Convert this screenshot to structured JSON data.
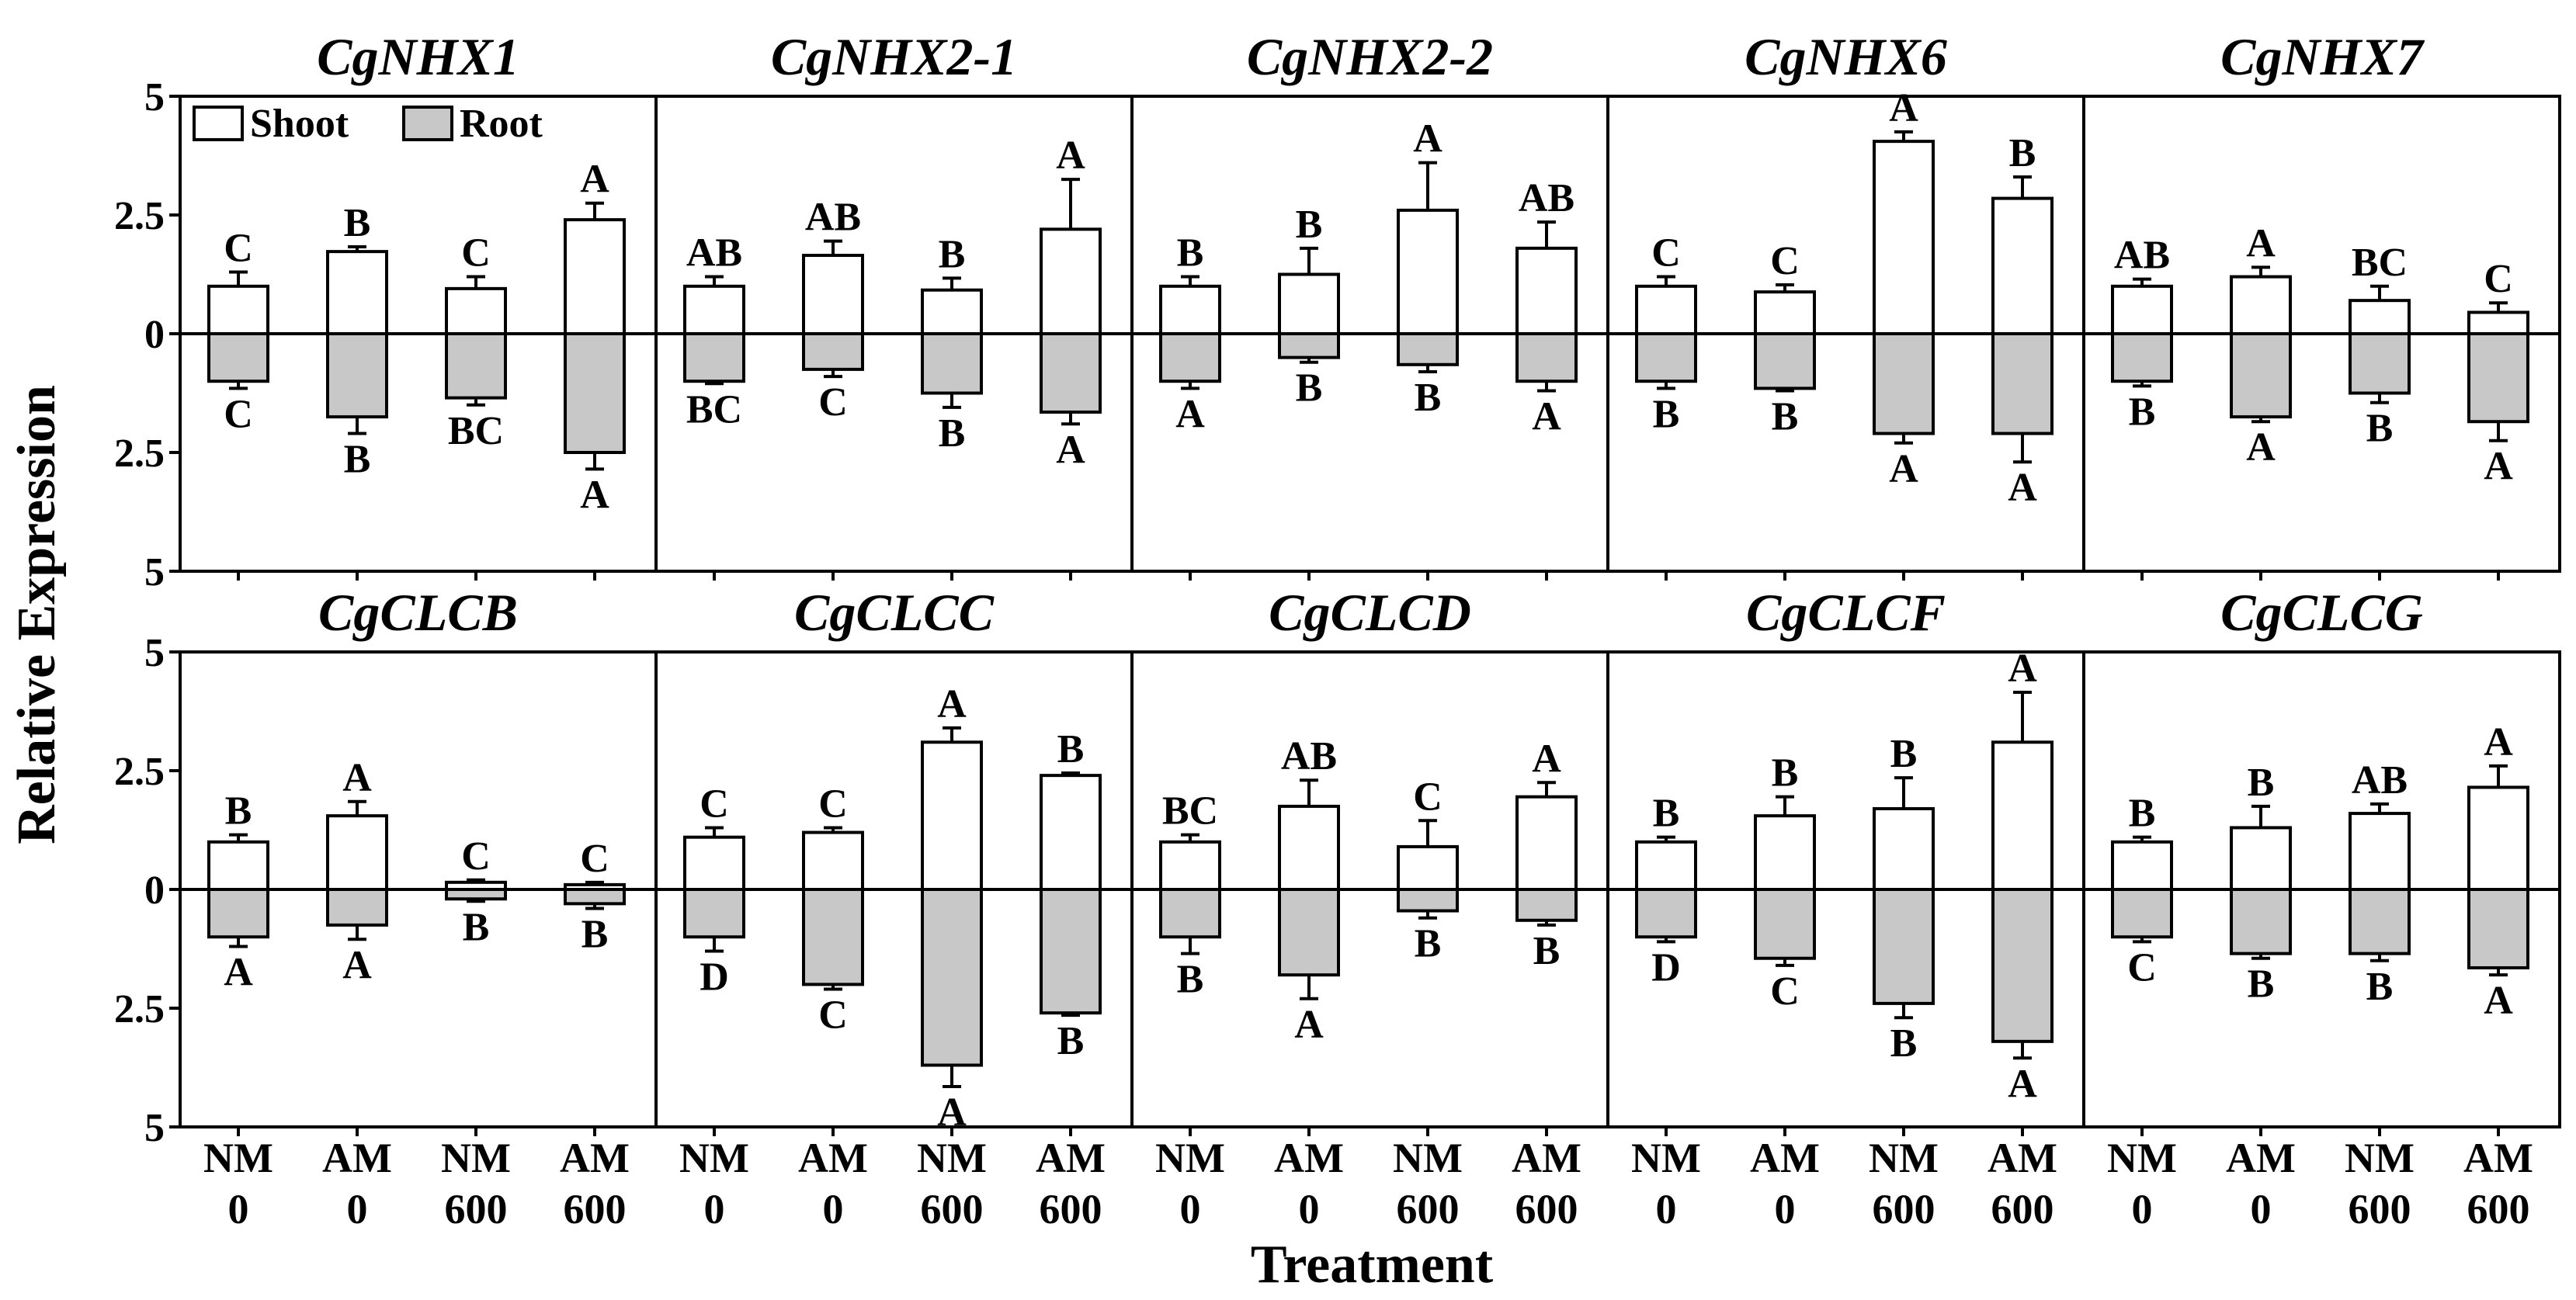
{
  "figure": {
    "ylabel": "Relative Expression",
    "xlabel": "Treatment"
  },
  "legend": {
    "shoot_label": "Shoot",
    "root_label": "Root",
    "shoot_color": "#ffffff",
    "root_color": "#c8c8c8"
  },
  "chart_data": {
    "type": "bar",
    "description_axis": "Two-sided bars: shoot upward, root downward (axis labels are absolute values)",
    "ylim": [
      -5,
      5
    ],
    "y_tick_values": [
      5,
      2.5,
      0,
      -2.5,
      -5
    ],
    "y_tick_labels": [
      "5",
      "2.5",
      "0",
      "2.5",
      "5"
    ],
    "categories": [
      {
        "line1": "NM",
        "line2": "0"
      },
      {
        "line1": "AM",
        "line2": "0"
      },
      {
        "line1": "NM",
        "line2": "600"
      },
      {
        "line1": "AM",
        "line2": "600"
      }
    ],
    "panels": [
      {
        "gene": "CgNHX1",
        "shoot": [
          1.0,
          1.73,
          0.95,
          2.4
        ],
        "shoot_err": [
          0.3,
          0.1,
          0.25,
          0.35
        ],
        "shoot_sig": [
          "C",
          "B",
          "C",
          "A"
        ],
        "root": [
          1.0,
          1.75,
          1.35,
          2.5
        ],
        "root_err": [
          0.15,
          0.35,
          0.15,
          0.35
        ],
        "root_sig": [
          "C",
          "B",
          "BC",
          "A"
        ]
      },
      {
        "gene": "CgNHX2-1",
        "shoot": [
          1.0,
          1.65,
          0.92,
          2.2
        ],
        "shoot_err": [
          0.2,
          0.3,
          0.25,
          1.05
        ],
        "shoot_sig": [
          "AB",
          "AB",
          "B",
          "A"
        ],
        "root": [
          1.0,
          0.75,
          1.25,
          1.65
        ],
        "root_err": [
          0.05,
          0.15,
          0.3,
          0.25
        ],
        "root_sig": [
          "BC",
          "C",
          "B",
          "A"
        ]
      },
      {
        "gene": "CgNHX2-2",
        "shoot": [
          1.0,
          1.25,
          2.6,
          1.8
        ],
        "shoot_err": [
          0.2,
          0.55,
          1.0,
          0.55
        ],
        "shoot_sig": [
          "B",
          "B",
          "A",
          "AB"
        ],
        "root": [
          1.0,
          0.5,
          0.65,
          1.0
        ],
        "root_err": [
          0.15,
          0.1,
          0.15,
          0.2
        ],
        "root_sig": [
          "A",
          "B",
          "B",
          "A"
        ]
      },
      {
        "gene": "CgNHX6",
        "shoot": [
          1.0,
          0.88,
          4.05,
          2.85
        ],
        "shoot_err": [
          0.2,
          0.15,
          0.2,
          0.45
        ],
        "shoot_sig": [
          "C",
          "C",
          "A",
          "B"
        ],
        "root": [
          1.0,
          1.15,
          2.1,
          2.1
        ],
        "root_err": [
          0.15,
          0.05,
          0.2,
          0.6
        ],
        "root_sig": [
          "B",
          "B",
          "A",
          "A"
        ]
      },
      {
        "gene": "CgNHX7",
        "shoot": [
          1.0,
          1.2,
          0.7,
          0.45
        ],
        "shoot_err": [
          0.15,
          0.2,
          0.3,
          0.2
        ],
        "shoot_sig": [
          "AB",
          "A",
          "BC",
          "C"
        ],
        "root": [
          1.0,
          1.75,
          1.25,
          1.85
        ],
        "root_err": [
          0.1,
          0.1,
          0.2,
          0.4
        ],
        "root_sig": [
          "B",
          "A",
          "B",
          "A"
        ]
      },
      {
        "gene": "CgCLCB",
        "shoot": [
          1.0,
          1.55,
          0.15,
          0.1
        ],
        "shoot_err": [
          0.15,
          0.3,
          0.05,
          0.05
        ],
        "shoot_sig": [
          "B",
          "A",
          "C",
          "C"
        ],
        "root": [
          1.0,
          0.75,
          0.2,
          0.3
        ],
        "root_err": [
          0.2,
          0.3,
          0.05,
          0.1
        ],
        "root_sig": [
          "A",
          "A",
          "B",
          "B"
        ]
      },
      {
        "gene": "CgCLCC",
        "shoot": [
          1.1,
          1.2,
          3.1,
          2.4
        ],
        "shoot_err": [
          0.2,
          0.1,
          0.3,
          0.05
        ],
        "shoot_sig": [
          "C",
          "C",
          "A",
          "B"
        ],
        "root": [
          1.0,
          2.0,
          3.7,
          2.6
        ],
        "root_err": [
          0.3,
          0.1,
          0.45,
          0.05
        ],
        "root_sig": [
          "D",
          "C",
          "A",
          "B"
        ]
      },
      {
        "gene": "CgCLCD",
        "shoot": [
          1.0,
          1.75,
          0.9,
          1.95
        ],
        "shoot_err": [
          0.15,
          0.55,
          0.55,
          0.3
        ],
        "shoot_sig": [
          "BC",
          "AB",
          "C",
          "A"
        ],
        "root": [
          1.0,
          1.8,
          0.45,
          0.65
        ],
        "root_err": [
          0.35,
          0.5,
          0.15,
          0.1
        ],
        "root_sig": [
          "B",
          "A",
          "B",
          "B"
        ]
      },
      {
        "gene": "CgCLCF",
        "shoot": [
          1.0,
          1.55,
          1.7,
          3.1
        ],
        "shoot_err": [
          0.1,
          0.4,
          0.65,
          1.05
        ],
        "shoot_sig": [
          "B",
          "B",
          "B",
          "A"
        ],
        "root": [
          1.0,
          1.45,
          2.4,
          3.2
        ],
        "root_err": [
          0.1,
          0.15,
          0.3,
          0.35
        ],
        "root_sig": [
          "D",
          "C",
          "B",
          "A"
        ]
      },
      {
        "gene": "CgCLCG",
        "shoot": [
          1.0,
          1.3,
          1.6,
          2.15
        ],
        "shoot_err": [
          0.1,
          0.45,
          0.2,
          0.45
        ],
        "shoot_sig": [
          "B",
          "B",
          "AB",
          "A"
        ],
        "root": [
          1.0,
          1.35,
          1.35,
          1.65
        ],
        "root_err": [
          0.1,
          0.1,
          0.15,
          0.15
        ],
        "root_sig": [
          "C",
          "B",
          "B",
          "A"
        ]
      }
    ]
  }
}
